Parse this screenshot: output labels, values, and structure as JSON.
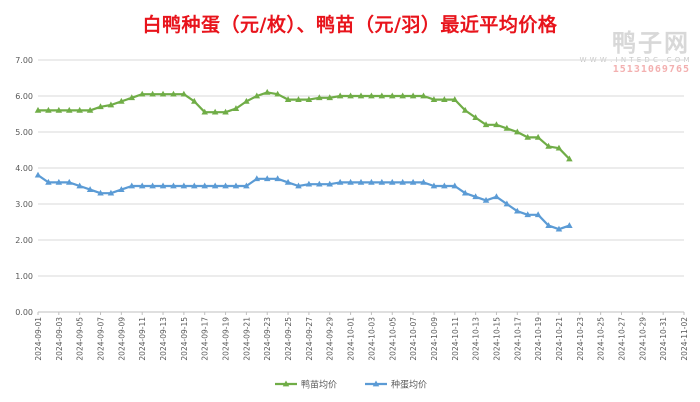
{
  "chart_data": {
    "type": "line",
    "title": "白鸭种蛋（元/枚）、鸭苗（元/羽）最近平均价格",
    "xlabel": "",
    "ylabel": "",
    "ylim": [
      0,
      7
    ],
    "y_ticks": [
      "0.00",
      "1.00",
      "2.00",
      "3.00",
      "4.00",
      "5.00",
      "6.00",
      "7.00"
    ],
    "x_start": "2024-09-01",
    "x_end": "2024-11-02",
    "x_ticks": [
      "2024-09-01",
      "2024-09-03",
      "2024-09-05",
      "2024-09-07",
      "2024-09-09",
      "2024-09-11",
      "2024-09-13",
      "2024-09-15",
      "2024-09-17",
      "2024-09-19",
      "2024-09-21",
      "2024-09-23",
      "2024-09-25",
      "2024-09-27",
      "2024-09-29",
      "2024-10-01",
      "2024-10-03",
      "2024-10-05",
      "2024-10-07",
      "2024-10-09",
      "2024-10-11",
      "2024-10-13",
      "2024-10-15",
      "2024-10-17",
      "2024-10-19",
      "2024-10-21",
      "2024-10-23",
      "2024-10-25",
      "2024-10-27",
      "2024-10-29",
      "2024-10-31",
      "2024-11-02"
    ],
    "grid": true,
    "legend": "bottom",
    "series": [
      {
        "name": "鸭苗均价",
        "color": "#70ad47",
        "marker": "triangle",
        "points": [
          [
            "2024-09-01",
            5.6
          ],
          [
            "2024-09-02",
            5.6
          ],
          [
            "2024-09-03",
            5.6
          ],
          [
            "2024-09-04",
            5.6
          ],
          [
            "2024-09-05",
            5.6
          ],
          [
            "2024-09-06",
            5.6
          ],
          [
            "2024-09-07",
            5.7
          ],
          [
            "2024-09-08",
            5.75
          ],
          [
            "2024-09-09",
            5.85
          ],
          [
            "2024-09-10",
            5.95
          ],
          [
            "2024-09-11",
            6.05
          ],
          [
            "2024-09-12",
            6.05
          ],
          [
            "2024-09-13",
            6.05
          ],
          [
            "2024-09-14",
            6.05
          ],
          [
            "2024-09-15",
            6.05
          ],
          [
            "2024-09-16",
            5.85
          ],
          [
            "2024-09-17",
            5.55
          ],
          [
            "2024-09-18",
            5.55
          ],
          [
            "2024-09-19",
            5.55
          ],
          [
            "2024-09-20",
            5.65
          ],
          [
            "2024-09-21",
            5.85
          ],
          [
            "2024-09-22",
            6.0
          ],
          [
            "2024-09-23",
            6.1
          ],
          [
            "2024-09-24",
            6.05
          ],
          [
            "2024-09-25",
            5.9
          ],
          [
            "2024-09-26",
            5.9
          ],
          [
            "2024-09-27",
            5.9
          ],
          [
            "2024-09-28",
            5.95
          ],
          [
            "2024-09-29",
            5.95
          ],
          [
            "2024-09-30",
            6.0
          ],
          [
            "2024-10-01",
            6.0
          ],
          [
            "2024-10-02",
            6.0
          ],
          [
            "2024-10-03",
            6.0
          ],
          [
            "2024-10-04",
            6.0
          ],
          [
            "2024-10-05",
            6.0
          ],
          [
            "2024-10-06",
            6.0
          ],
          [
            "2024-10-07",
            6.0
          ],
          [
            "2024-10-08",
            6.0
          ],
          [
            "2024-10-09",
            5.9
          ],
          [
            "2024-10-10",
            5.9
          ],
          [
            "2024-10-11",
            5.9
          ],
          [
            "2024-10-12",
            5.6
          ],
          [
            "2024-10-13",
            5.4
          ],
          [
            "2024-10-14",
            5.2
          ],
          [
            "2024-10-15",
            5.2
          ],
          [
            "2024-10-16",
            5.1
          ],
          [
            "2024-10-17",
            5.0
          ],
          [
            "2024-10-18",
            4.85
          ],
          [
            "2024-10-19",
            4.85
          ],
          [
            "2024-10-20",
            4.6
          ],
          [
            "2024-10-21",
            4.55
          ],
          [
            "2024-10-22",
            4.25
          ]
        ]
      },
      {
        "name": "种蛋均价",
        "color": "#5b9bd5",
        "marker": "triangle",
        "points": [
          [
            "2024-09-01",
            3.8
          ],
          [
            "2024-09-02",
            3.6
          ],
          [
            "2024-09-03",
            3.6
          ],
          [
            "2024-09-04",
            3.6
          ],
          [
            "2024-09-05",
            3.5
          ],
          [
            "2024-09-06",
            3.4
          ],
          [
            "2024-09-07",
            3.3
          ],
          [
            "2024-09-08",
            3.3
          ],
          [
            "2024-09-09",
            3.4
          ],
          [
            "2024-09-10",
            3.5
          ],
          [
            "2024-09-11",
            3.5
          ],
          [
            "2024-09-12",
            3.5
          ],
          [
            "2024-09-13",
            3.5
          ],
          [
            "2024-09-14",
            3.5
          ],
          [
            "2024-09-15",
            3.5
          ],
          [
            "2024-09-16",
            3.5
          ],
          [
            "2024-09-17",
            3.5
          ],
          [
            "2024-09-18",
            3.5
          ],
          [
            "2024-09-19",
            3.5
          ],
          [
            "2024-09-20",
            3.5
          ],
          [
            "2024-09-21",
            3.5
          ],
          [
            "2024-09-22",
            3.7
          ],
          [
            "2024-09-23",
            3.7
          ],
          [
            "2024-09-24",
            3.7
          ],
          [
            "2024-09-25",
            3.6
          ],
          [
            "2024-09-26",
            3.5
          ],
          [
            "2024-09-27",
            3.55
          ],
          [
            "2024-09-28",
            3.55
          ],
          [
            "2024-09-29",
            3.55
          ],
          [
            "2024-09-30",
            3.6
          ],
          [
            "2024-10-01",
            3.6
          ],
          [
            "2024-10-02",
            3.6
          ],
          [
            "2024-10-03",
            3.6
          ],
          [
            "2024-10-04",
            3.6
          ],
          [
            "2024-10-05",
            3.6
          ],
          [
            "2024-10-06",
            3.6
          ],
          [
            "2024-10-07",
            3.6
          ],
          [
            "2024-10-08",
            3.6
          ],
          [
            "2024-10-09",
            3.5
          ],
          [
            "2024-10-10",
            3.5
          ],
          [
            "2024-10-11",
            3.5
          ],
          [
            "2024-10-12",
            3.3
          ],
          [
            "2024-10-13",
            3.2
          ],
          [
            "2024-10-14",
            3.1
          ],
          [
            "2024-10-15",
            3.2
          ],
          [
            "2024-10-16",
            3.0
          ],
          [
            "2024-10-17",
            2.8
          ],
          [
            "2024-10-18",
            2.7
          ],
          [
            "2024-10-19",
            2.7
          ],
          [
            "2024-10-20",
            2.4
          ],
          [
            "2024-10-21",
            2.3
          ],
          [
            "2024-10-22",
            2.4
          ]
        ]
      }
    ]
  },
  "watermark": {
    "main": "鸭子网",
    "url": "W W W . I N T E D C . C O M",
    "phone": "15131069765"
  }
}
